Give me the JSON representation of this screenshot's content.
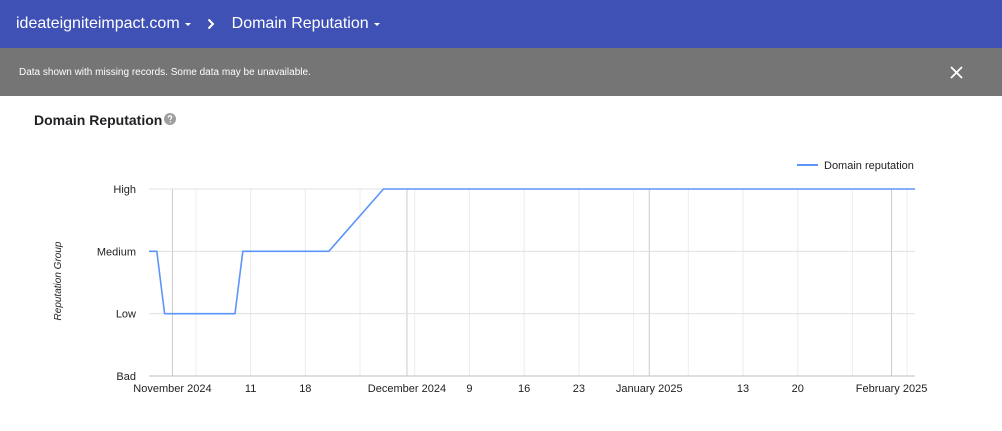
{
  "header": {
    "domain_label": "ideateigniteimpact.com",
    "separator_icon": "chevron-right-icon",
    "page_label": "Domain Reputation"
  },
  "notice": {
    "text": "Data shown with missing records. Some data may be unavailable.",
    "close_icon": "close-icon"
  },
  "section": {
    "title": "Domain Reputation",
    "help_icon": "help-circle-icon"
  },
  "colors": {
    "header_bg": "#3f51b5",
    "notice_bg": "#757575",
    "series_line": "#5b95f9"
  },
  "chart_data": {
    "type": "line",
    "ylabel": "Reputation Group",
    "y_categories": [
      "Bad",
      "Low",
      "Medium",
      "High"
    ],
    "x_range": [
      "2024-10-29",
      "2025-02-04"
    ],
    "x_ticks": [
      {
        "date": "2024-11-01",
        "label": "November 2024",
        "major": true
      },
      {
        "date": "2024-11-11",
        "label": "11",
        "major": false
      },
      {
        "date": "2024-11-18",
        "label": "18",
        "major": false
      },
      {
        "date": "2024-12-01",
        "label": "December 2024",
        "major": true
      },
      {
        "date": "2024-12-09",
        "label": "9",
        "major": false
      },
      {
        "date": "2024-12-16",
        "label": "16",
        "major": false
      },
      {
        "date": "2024-12-23",
        "label": "23",
        "major": false
      },
      {
        "date": "2025-01-01",
        "label": "January 2025",
        "major": true
      },
      {
        "date": "2025-01-13",
        "label": "13",
        "major": false
      },
      {
        "date": "2025-01-20",
        "label": "20",
        "major": false
      },
      {
        "date": "2025-02-01",
        "label": "February 2025",
        "major": true
      }
    ],
    "minor_grid": [
      "2024-11-04",
      "2024-11-25",
      "2024-12-02",
      "2024-12-30",
      "2025-01-06",
      "2025-01-27",
      "2025-02-03"
    ],
    "series": [
      {
        "name": "Domain reputation",
        "points": [
          {
            "x": "2024-10-29",
            "y": "Medium"
          },
          {
            "x": "2024-10-30",
            "y": "Medium"
          },
          {
            "x": "2024-10-31",
            "y": "Low"
          },
          {
            "x": "2024-11-09",
            "y": "Low"
          },
          {
            "x": "2024-11-10",
            "y": "Medium"
          },
          {
            "x": "2024-11-21",
            "y": "Medium"
          },
          {
            "x": "2024-11-28",
            "y": "High"
          },
          {
            "x": "2025-02-04",
            "y": "High"
          }
        ]
      }
    ],
    "legend_position": "top-right",
    "grid": true
  }
}
